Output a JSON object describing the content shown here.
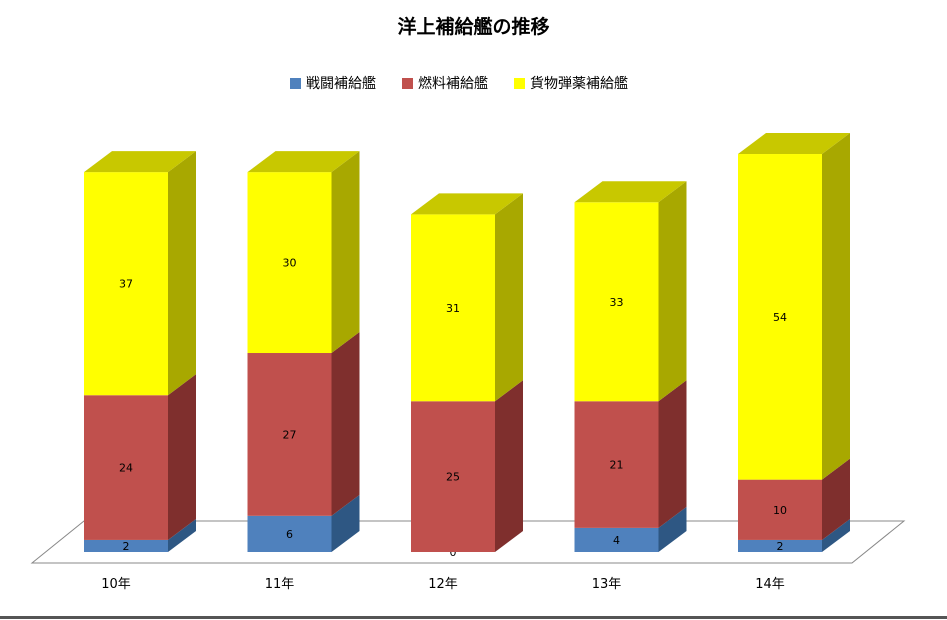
{
  "chart_data": {
    "type": "bar",
    "stacked": true,
    "three_d": true,
    "title": "洋上補給艦の推移",
    "categories": [
      "10年",
      "11年",
      "12年",
      "13年",
      "14年"
    ],
    "series": [
      {
        "name": "戦闘補給艦",
        "values": [
          2,
          6,
          0,
          4,
          2
        ],
        "color": "#4F81BD",
        "side": "#2E5783",
        "top": "#6B97CC"
      },
      {
        "name": "燃料補給艦",
        "values": [
          24,
          27,
          25,
          21,
          10
        ],
        "color": "#C0504D",
        "side": "#7F2F2D",
        "top": "#D06A67"
      },
      {
        "name": "貨物弾薬補給艦",
        "values": [
          37,
          30,
          31,
          33,
          54
        ],
        "color": "#FFFF00",
        "side": "#A8A800",
        "top": "#C8C800"
      }
    ],
    "legend": "top",
    "grid": false
  }
}
